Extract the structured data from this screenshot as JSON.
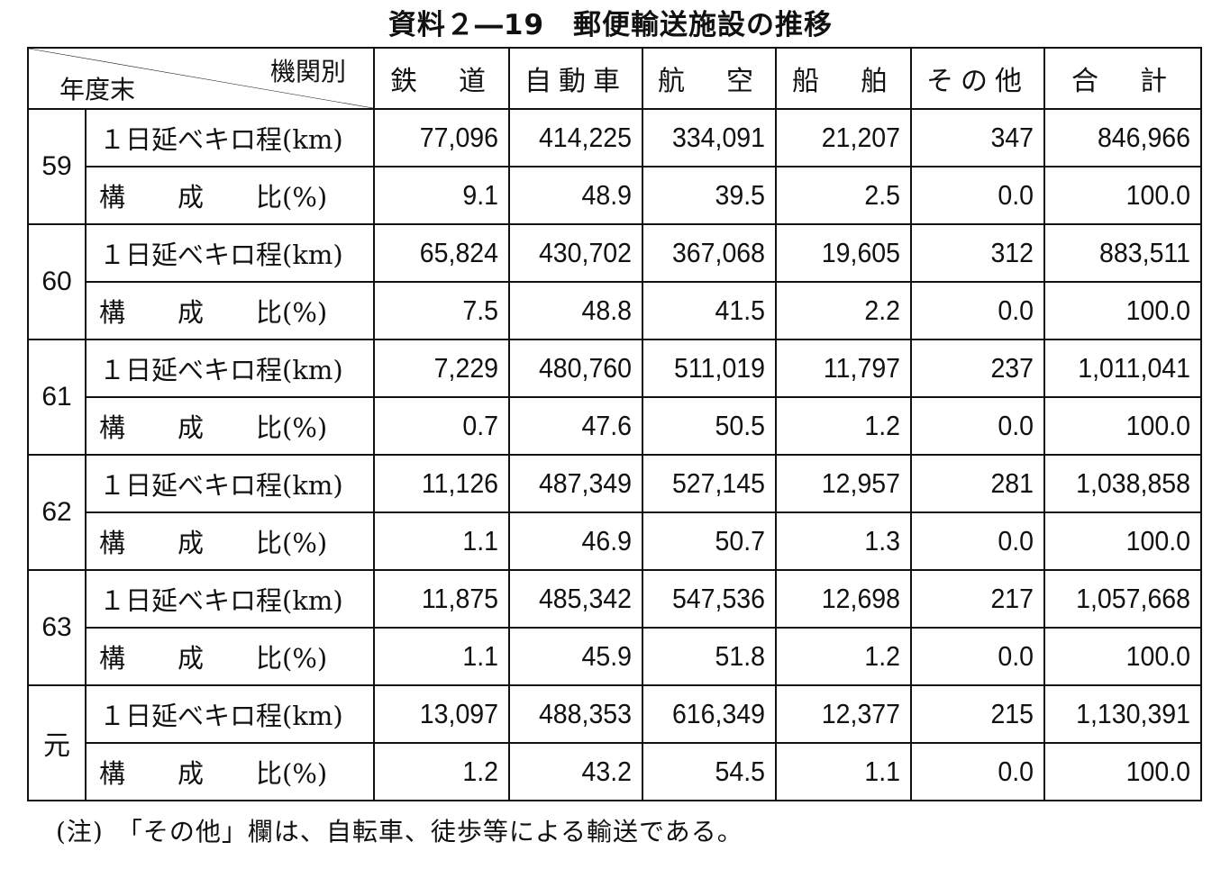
{
  "title": "資料２―19　郵便輸送施設の推移",
  "header": {
    "corner_top": "機関別",
    "corner_bottom": "年度末",
    "columns": [
      "鉄　道",
      "自動車",
      "航　空",
      "船　舶",
      "その他",
      "合　計"
    ]
  },
  "row_labels": {
    "km": "１日延べキロ程(km)",
    "ratio": "構　　成　　比(%)"
  },
  "years": [
    {
      "year": "59",
      "km": [
        "77,096",
        "414,225",
        "334,091",
        "21,207",
        "347",
        "846,966"
      ],
      "ratio": [
        "9.1",
        "48.9",
        "39.5",
        "2.5",
        "0.0",
        "100.0"
      ]
    },
    {
      "year": "60",
      "km": [
        "65,824",
        "430,702",
        "367,068",
        "19,605",
        "312",
        "883,511"
      ],
      "ratio": [
        "7.5",
        "48.8",
        "41.5",
        "2.2",
        "0.0",
        "100.0"
      ]
    },
    {
      "year": "61",
      "km": [
        "7,229",
        "480,760",
        "511,019",
        "11,797",
        "237",
        "1,011,041"
      ],
      "ratio": [
        "0.7",
        "47.6",
        "50.5",
        "1.2",
        "0.0",
        "100.0"
      ]
    },
    {
      "year": "62",
      "km": [
        "11,126",
        "487,349",
        "527,145",
        "12,957",
        "281",
        "1,038,858"
      ],
      "ratio": [
        "1.1",
        "46.9",
        "50.7",
        "1.3",
        "0.0",
        "100.0"
      ]
    },
    {
      "year": "63",
      "km": [
        "11,875",
        "485,342",
        "547,536",
        "12,698",
        "217",
        "1,057,668"
      ],
      "ratio": [
        "1.1",
        "45.9",
        "51.8",
        "1.2",
        "0.0",
        "100.0"
      ]
    },
    {
      "year": "元",
      "km": [
        "13,097",
        "488,353",
        "616,349",
        "12,377",
        "215",
        "1,130,391"
      ],
      "ratio": [
        "1.2",
        "43.2",
        "54.5",
        "1.1",
        "0.0",
        "100.0"
      ]
    }
  ],
  "note": "(注)　「その他」欄は、自転車、徒歩等による輸送である。"
}
